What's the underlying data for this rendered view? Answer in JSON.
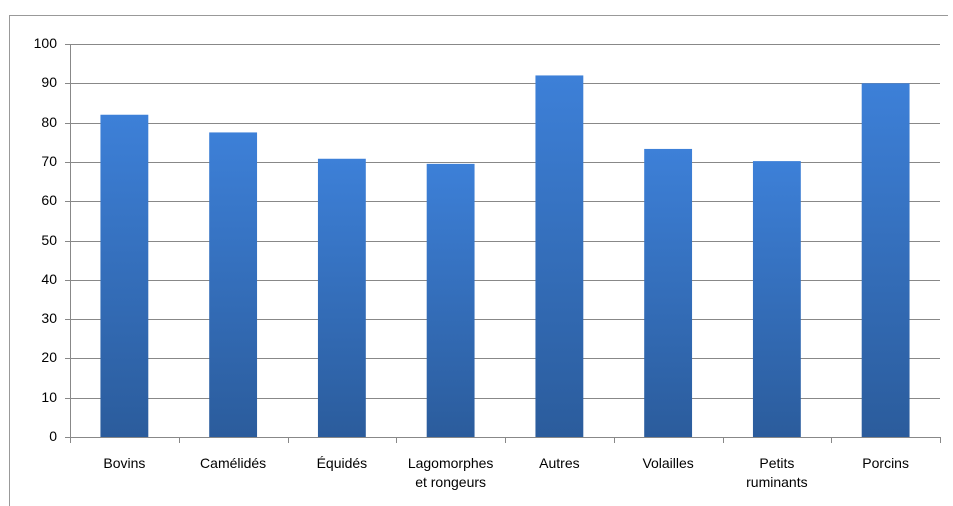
{
  "chart_data": {
    "type": "bar",
    "categories": [
      "Bovins",
      "Camélidés",
      "Équidés",
      "Lagomorphes et rongeurs",
      "Autres",
      "Volailles",
      "Petits ruminants",
      "Porcins"
    ],
    "values": [
      82,
      77.5,
      70.8,
      69.5,
      92,
      73.3,
      70.2,
      90
    ],
    "color": "#3a78c8",
    "ylim": [
      0,
      100
    ],
    "yticks": [
      0,
      10,
      20,
      30,
      40,
      50,
      60,
      70,
      80,
      90,
      100
    ],
    "grid": true
  }
}
